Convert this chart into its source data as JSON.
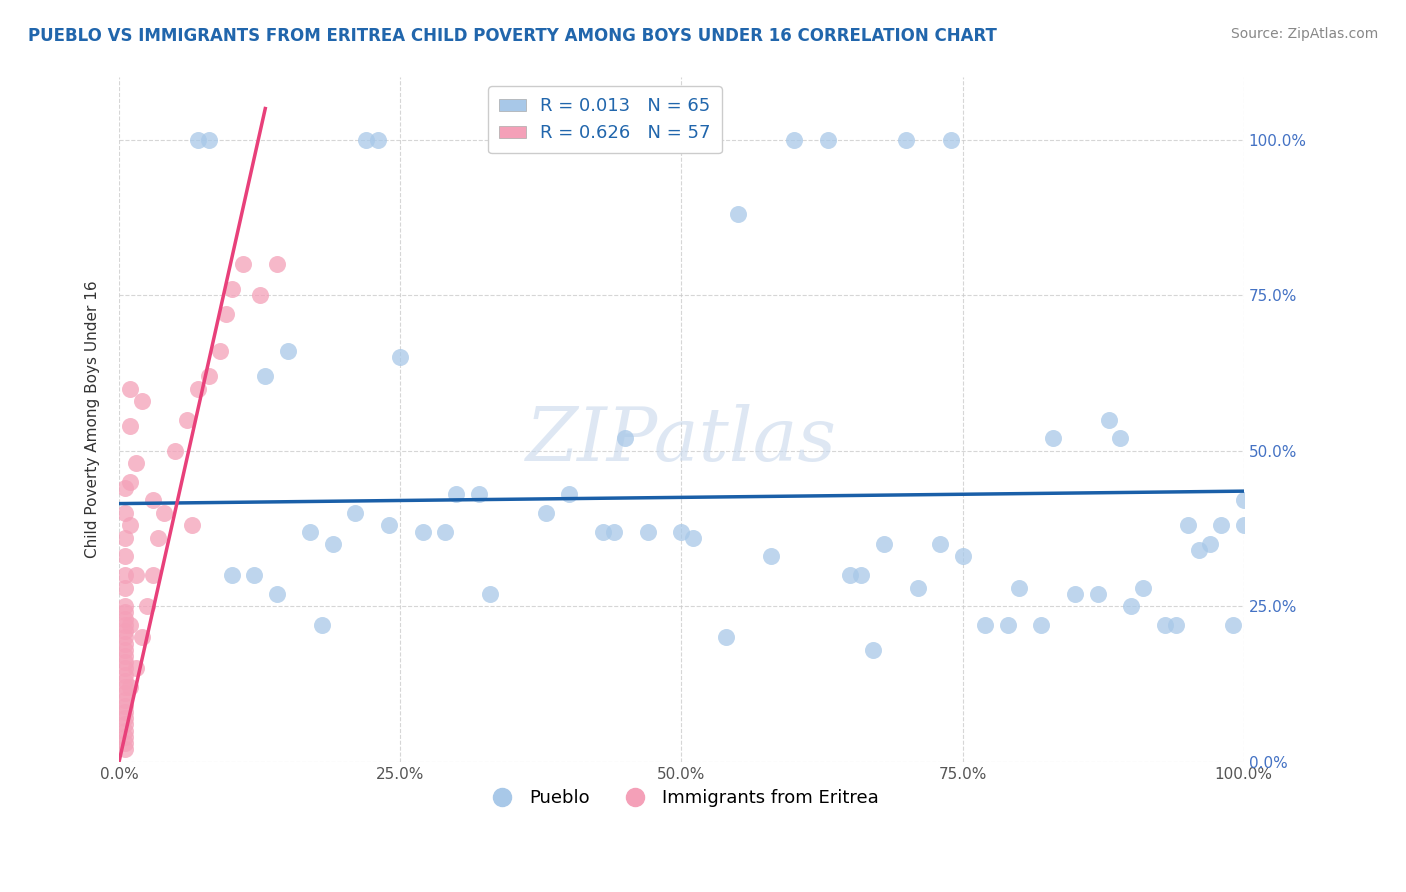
{
  "title": "PUEBLO VS IMMIGRANTS FROM ERITREA CHILD POVERTY AMONG BOYS UNDER 16 CORRELATION CHART",
  "source": "Source: ZipAtlas.com",
  "ylabel": "Child Poverty Among Boys Under 16",
  "watermark": "ZIPatlas",
  "legend1_label": "Pueblo",
  "legend2_label": "Immigrants from Eritrea",
  "R1": 0.013,
  "N1": 65,
  "R2": 0.626,
  "N2": 57,
  "color_blue": "#a8c8e8",
  "color_pink": "#f4a0b8",
  "trendline_blue": "#1a5fa8",
  "trendline_pink": "#e8407a",
  "pueblo_x": [
    0.07,
    0.08,
    0.22,
    0.23,
    0.36,
    0.37,
    0.5,
    0.55,
    0.6,
    0.63,
    0.7,
    0.74,
    0.13,
    0.15,
    0.17,
    0.25,
    0.27,
    0.3,
    0.32,
    0.38,
    0.43,
    0.44,
    0.47,
    0.5,
    0.51,
    0.68,
    0.71,
    0.73,
    0.75,
    0.77,
    0.79,
    0.8,
    0.82,
    0.85,
    0.87,
    0.9,
    0.91,
    0.93,
    0.94,
    0.96,
    0.97,
    0.98,
    0.99,
    0.1,
    0.12,
    0.14,
    0.18,
    0.19,
    0.21,
    0.24,
    0.29,
    0.33,
    0.4,
    0.45,
    0.54,
    0.58,
    0.65,
    0.66,
    0.67,
    0.83,
    0.88,
    0.89,
    0.95,
    1.0,
    1.0
  ],
  "pueblo_y": [
    1.0,
    1.0,
    1.0,
    1.0,
    1.0,
    1.0,
    1.0,
    0.88,
    1.0,
    1.0,
    1.0,
    1.0,
    0.62,
    0.66,
    0.37,
    0.65,
    0.37,
    0.43,
    0.43,
    0.4,
    0.37,
    0.37,
    0.37,
    0.37,
    0.36,
    0.35,
    0.28,
    0.35,
    0.33,
    0.22,
    0.22,
    0.28,
    0.22,
    0.27,
    0.27,
    0.25,
    0.28,
    0.22,
    0.22,
    0.34,
    0.35,
    0.38,
    0.22,
    0.3,
    0.3,
    0.27,
    0.22,
    0.35,
    0.4,
    0.38,
    0.37,
    0.27,
    0.43,
    0.52,
    0.2,
    0.33,
    0.3,
    0.3,
    0.18,
    0.52,
    0.55,
    0.52,
    0.38,
    0.38,
    0.42
  ],
  "eritrea_x": [
    0.005,
    0.005,
    0.005,
    0.005,
    0.005,
    0.005,
    0.005,
    0.005,
    0.005,
    0.005,
    0.005,
    0.005,
    0.005,
    0.005,
    0.005,
    0.005,
    0.005,
    0.005,
    0.005,
    0.005,
    0.005,
    0.005,
    0.005,
    0.005,
    0.005,
    0.005,
    0.005,
    0.005,
    0.005,
    0.005,
    0.01,
    0.01,
    0.01,
    0.01,
    0.01,
    0.01,
    0.015,
    0.015,
    0.015,
    0.02,
    0.02,
    0.025,
    0.03,
    0.03,
    0.035,
    0.04,
    0.05,
    0.06,
    0.065,
    0.07,
    0.08,
    0.09,
    0.095,
    0.1,
    0.11,
    0.125,
    0.14
  ],
  "eritrea_y": [
    0.02,
    0.03,
    0.04,
    0.05,
    0.06,
    0.07,
    0.08,
    0.09,
    0.1,
    0.11,
    0.12,
    0.13,
    0.14,
    0.15,
    0.16,
    0.17,
    0.18,
    0.19,
    0.2,
    0.21,
    0.22,
    0.23,
    0.24,
    0.25,
    0.28,
    0.3,
    0.33,
    0.36,
    0.4,
    0.44,
    0.12,
    0.22,
    0.38,
    0.45,
    0.54,
    0.6,
    0.15,
    0.3,
    0.48,
    0.2,
    0.58,
    0.25,
    0.3,
    0.42,
    0.36,
    0.4,
    0.5,
    0.55,
    0.38,
    0.6,
    0.62,
    0.66,
    0.72,
    0.76,
    0.8,
    0.75,
    0.8
  ],
  "xlim": [
    0.0,
    1.0
  ],
  "ylim": [
    0.0,
    1.1
  ],
  "yticks": [
    0.0,
    0.25,
    0.5,
    0.75,
    1.0
  ],
  "yticklabels": [
    "0.0%",
    "25.0%",
    "50.0%",
    "75.0%",
    "100.0%"
  ],
  "xticks": [
    0.0,
    0.25,
    0.5,
    0.75,
    1.0
  ],
  "xticklabels": [
    "0.0%",
    "25.0%",
    "50.0%",
    "75.0%",
    "100.0%"
  ],
  "grid_color": "#cccccc",
  "background_color": "#ffffff",
  "title_color": "#2166ac",
  "source_color": "#888888",
  "blue_trendline_y0": 0.415,
  "blue_trendline_y1": 0.435,
  "pink_trendline_x0": 0.0,
  "pink_trendline_y0": 0.0,
  "pink_trendline_x1": 0.13,
  "pink_trendline_y1": 1.05
}
